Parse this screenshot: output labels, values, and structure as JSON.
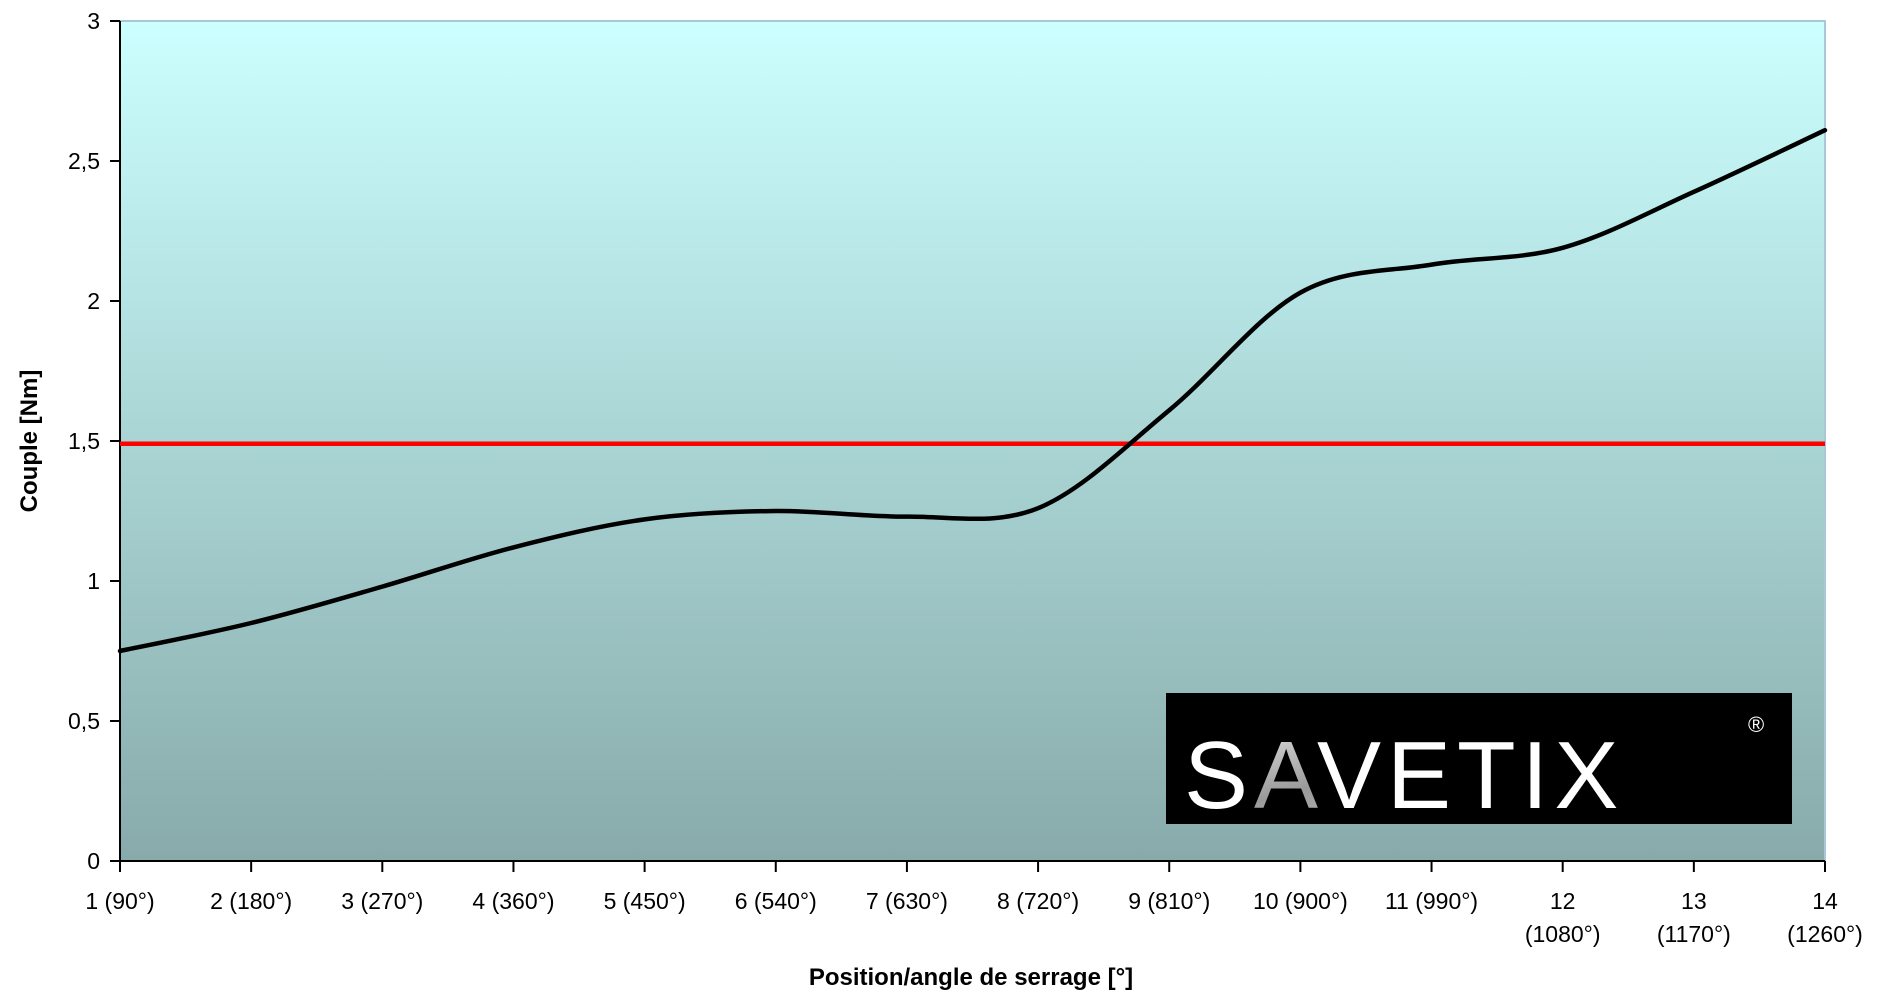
{
  "chart_data": {
    "type": "line",
    "xlabel": "Position/angle de serrage [°]",
    "ylabel": "Couple  [Nm]",
    "categories": [
      [
        "1  (90°)"
      ],
      [
        "2 (180°)"
      ],
      [
        "3 (270°)"
      ],
      [
        "4 (360°)"
      ],
      [
        "5 (450°)"
      ],
      [
        "6 (540°)"
      ],
      [
        "7 (630°)"
      ],
      [
        "8 (720°)"
      ],
      [
        "9 (810°)"
      ],
      [
        "10 (900°)"
      ],
      [
        "11 (990°)"
      ],
      [
        "12",
        "(1080°)"
      ],
      [
        "13",
        "(1170°)"
      ],
      [
        "14",
        "(1260°)"
      ]
    ],
    "y_ticks": [
      "0",
      "0,5",
      "1",
      "1,5",
      "2",
      "2,5",
      "3"
    ],
    "ylim": [
      0,
      3
    ],
    "series": [
      {
        "values": [
          0.75,
          0.85,
          0.98,
          1.12,
          1.22,
          1.25,
          1.23,
          1.26,
          1.61,
          2.03,
          2.13,
          2.19,
          2.39,
          2.61
        ],
        "color": "#000000"
      }
    ],
    "reference_line": {
      "value": 1.49,
      "color": "#ff0000"
    },
    "plot_background": {
      "top": "#ccffff",
      "bottom": "#88aaaa"
    },
    "grid": false,
    "legend": "none",
    "logo": {
      "text": "SAVETIX",
      "mark": "®"
    }
  }
}
